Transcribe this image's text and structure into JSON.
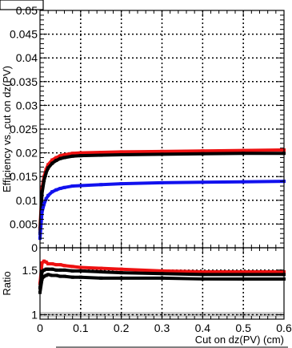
{
  "chart_data": [
    {
      "type": "line",
      "panel": "efficiency",
      "ylabel": "Efficiency vs. cut on dz(PV)",
      "ylim": [
        0,
        0.05
      ],
      "yticks": [
        "0",
        "0.005",
        "0.01",
        "0.015",
        "0.02",
        "0.025",
        "0.03",
        "0.035",
        "0.04",
        "0.045",
        "0.05"
      ],
      "xlim": [
        0,
        0.6
      ],
      "grid": true,
      "x": [
        0,
        0.005,
        0.01,
        0.015,
        0.02,
        0.03,
        0.04,
        0.05,
        0.06,
        0.08,
        0.1,
        0.15,
        0.2,
        0.3,
        0.4,
        0.5,
        0.6
      ],
      "series": [
        {
          "color": "#ee1111",
          "values": [
            0.004,
            0.0125,
            0.015,
            0.0165,
            0.0175,
            0.0185,
            0.019,
            0.0194,
            0.0196,
            0.0199,
            0.02,
            0.0201,
            0.0202,
            0.0203,
            0.0204,
            0.0205,
            0.0206
          ]
        },
        {
          "color": "#000000",
          "values": [
            0.003,
            0.0115,
            0.0142,
            0.0158,
            0.0168,
            0.0178,
            0.0184,
            0.0188,
            0.019,
            0.0193,
            0.0194,
            0.0195,
            0.0196,
            0.0197,
            0.0198,
            0.0199,
            0.0199
          ]
        },
        {
          "color": "#1111ee",
          "values": [
            0.002,
            0.0075,
            0.0092,
            0.0103,
            0.011,
            0.0118,
            0.0122,
            0.0125,
            0.0127,
            0.013,
            0.0131,
            0.0133,
            0.0135,
            0.0137,
            0.0138,
            0.0139,
            0.014
          ]
        }
      ]
    },
    {
      "type": "line",
      "panel": "ratio",
      "ylabel": "Ratio",
      "ylim": [
        0.95,
        1.75
      ],
      "yticks": [
        "1",
        "1.5"
      ],
      "xlabel": "Cut on dz(PV) (cm)",
      "xlim": [
        0,
        0.6
      ],
      "xticks": [
        "0",
        "0.1",
        "0.2",
        "0.3",
        "0.4",
        "0.5",
        "0.6"
      ],
      "grid": true,
      "band_color": "#cccccc",
      "band": [
        0.97,
        1.03
      ],
      "x": [
        0,
        0.005,
        0.01,
        0.015,
        0.02,
        0.03,
        0.04,
        0.05,
        0.06,
        0.08,
        0.1,
        0.15,
        0.2,
        0.3,
        0.4,
        0.5,
        0.6
      ],
      "series": [
        {
          "color": "#ee1111",
          "values": [
            1.35,
            1.58,
            1.6,
            1.59,
            1.57,
            1.57,
            1.56,
            1.56,
            1.55,
            1.54,
            1.53,
            1.52,
            1.51,
            1.49,
            1.48,
            1.48,
            1.48
          ]
        },
        {
          "color": "#000000",
          "values": [
            1.3,
            1.48,
            1.5,
            1.51,
            1.51,
            1.51,
            1.5,
            1.5,
            1.5,
            1.49,
            1.49,
            1.48,
            1.47,
            1.46,
            1.45,
            1.45,
            1.45
          ]
        },
        {
          "color": "#000000",
          "values": [
            1.25,
            1.4,
            1.43,
            1.44,
            1.45,
            1.44,
            1.44,
            1.43,
            1.43,
            1.42,
            1.42,
            1.41,
            1.41,
            1.41,
            1.4,
            1.4,
            1.4
          ]
        }
      ]
    }
  ]
}
